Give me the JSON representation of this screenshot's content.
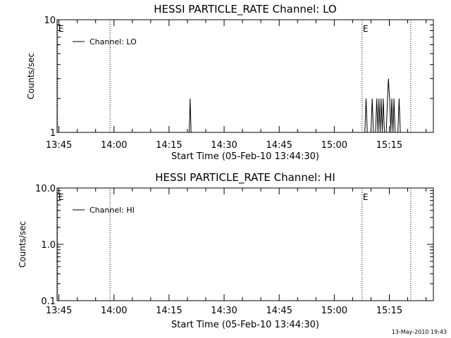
{
  "footer": "13-May-2010 19:43",
  "chart_data": [
    {
      "type": "line",
      "title": "HESSI PARTICLE_RATE Channel: LO",
      "xlabel": "Start Time (05-Feb-10 13:44:30)",
      "ylabel": "Counts/sec",
      "yscale": "log",
      "ylim": [
        1,
        10
      ],
      "y_ticks": [
        "1",
        "10"
      ],
      "xlim": [
        "13:44:30",
        "15:27:00"
      ],
      "x_ticks": [
        "13:45",
        "14:00",
        "14:15",
        "14:30",
        "14:45",
        "15:00",
        "15:15"
      ],
      "legend": {
        "entries": [
          "Channel: LO"
        ],
        "position": "top-left"
      },
      "markers": [
        {
          "time": "13:44:40",
          "label": "E"
        },
        {
          "time": "13:58:55",
          "label": ""
        },
        {
          "time": "15:07:35",
          "label": "E"
        },
        {
          "time": "15:20:50",
          "label": ""
        }
      ],
      "series": [
        {
          "name": "Channel: LO",
          "points": [
            [
              "14:20:30",
              1
            ],
            [
              "14:20:45",
              2
            ],
            [
              "14:21:00",
              1
            ],
            [
              "15:08:20",
              1
            ],
            [
              "15:08:40",
              2
            ],
            [
              "15:09:00",
              1
            ],
            [
              "15:10:00",
              1
            ],
            [
              "15:10:20",
              2
            ],
            [
              "15:10:40",
              1
            ],
            [
              "15:11:15",
              1
            ],
            [
              "15:11:35",
              2
            ],
            [
              "15:11:55",
              1
            ],
            [
              "15:12:10",
              2
            ],
            [
              "15:12:30",
              1
            ],
            [
              "15:12:45",
              2
            ],
            [
              "15:13:05",
              1
            ],
            [
              "15:13:20",
              2
            ],
            [
              "15:13:40",
              1
            ],
            [
              "15:14:10",
              1
            ],
            [
              "15:14:30",
              2
            ],
            [
              "15:14:45",
              3
            ],
            [
              "15:15:05",
              2
            ],
            [
              "15:15:25",
              1
            ],
            [
              "15:15:40",
              2
            ],
            [
              "15:16:00",
              1
            ],
            [
              "15:16:15",
              2
            ],
            [
              "15:16:35",
              1
            ],
            [
              "15:17:20",
              1
            ],
            [
              "15:17:40",
              2
            ],
            [
              "15:18:00",
              1
            ]
          ]
        }
      ]
    },
    {
      "type": "line",
      "title": "HESSI PARTICLE_RATE Channel: HI",
      "xlabel": "Start Time (05-Feb-10 13:44:30)",
      "ylabel": "Counts/sec",
      "yscale": "log",
      "ylim": [
        0.1,
        10
      ],
      "y_ticks": [
        "0.1",
        "1.0",
        "10.0"
      ],
      "xlim": [
        "13:44:30",
        "15:27:00"
      ],
      "x_ticks": [
        "13:45",
        "14:00",
        "14:15",
        "14:30",
        "14:45",
        "15:00",
        "15:15"
      ],
      "legend": {
        "entries": [
          "Channel: HI"
        ],
        "position": "top-left"
      },
      "markers": [
        {
          "time": "13:44:40",
          "label": "E"
        },
        {
          "time": "13:58:55",
          "label": ""
        },
        {
          "time": "15:07:35",
          "label": "E"
        },
        {
          "time": "15:20:50",
          "label": ""
        }
      ],
      "series": [
        {
          "name": "Channel: HI",
          "points": []
        }
      ]
    }
  ]
}
